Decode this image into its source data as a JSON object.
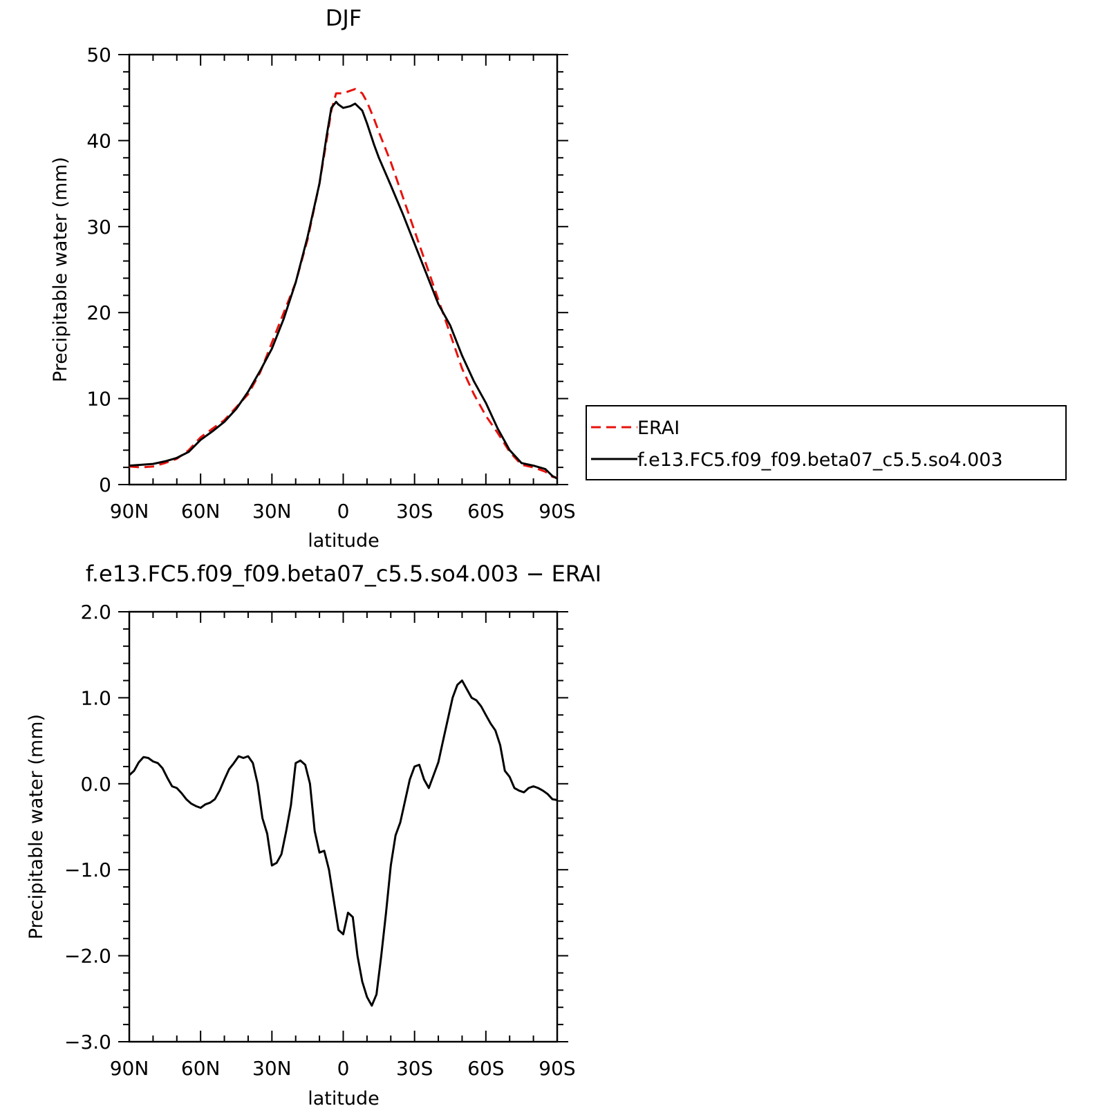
{
  "chart_data": [
    {
      "type": "line",
      "title": "DJF",
      "xlabel": "latitude",
      "ylabel": "Precipitable water (mm)",
      "xlim": [
        90,
        -90
      ],
      "ylim": [
        0,
        50
      ],
      "x_ticks": [
        {
          "value": 90,
          "label": "90N"
        },
        {
          "value": 60,
          "label": "60N"
        },
        {
          "value": 30,
          "label": "30N"
        },
        {
          "value": 0,
          "label": "0"
        },
        {
          "value": -30,
          "label": "30S"
        },
        {
          "value": -60,
          "label": "60S"
        },
        {
          "value": -90,
          "label": "90S"
        }
      ],
      "y_ticks": [
        {
          "value": 0,
          "label": "0"
        },
        {
          "value": 10,
          "label": "10"
        },
        {
          "value": 20,
          "label": "20"
        },
        {
          "value": 30,
          "label": "30"
        },
        {
          "value": 40,
          "label": "40"
        },
        {
          "value": 50,
          "label": "50"
        }
      ],
      "legend": "right",
      "series": [
        {
          "name": "ERAI",
          "color": "#e8120c",
          "dash": "dashed",
          "x": [
            90,
            85,
            80,
            75,
            70,
            65,
            60,
            55,
            50,
            45,
            40,
            35,
            30,
            25,
            20,
            15,
            10,
            7,
            5,
            3,
            2,
            0,
            -3,
            -5,
            -8,
            -10,
            -13,
            -15,
            -20,
            -25,
            -30,
            -35,
            -40,
            -45,
            -50,
            -55,
            -60,
            -65,
            -70,
            -75,
            -80,
            -85,
            -88,
            -90
          ],
          "y": [
            2.1,
            2.0,
            2.1,
            2.5,
            3.0,
            4.0,
            5.5,
            6.5,
            7.5,
            9.0,
            10.5,
            13.0,
            16.5,
            20.0,
            23.5,
            28.5,
            35.0,
            40.0,
            43.5,
            45.5,
            45.5,
            45.5,
            45.8,
            46.0,
            45.5,
            44.5,
            42.5,
            41.0,
            37.5,
            33.5,
            29.5,
            25.5,
            21.5,
            17.5,
            13.5,
            10.5,
            8.0,
            6.0,
            3.8,
            2.3,
            2.0,
            1.5,
            0.9,
            0.8
          ]
        },
        {
          "name": "f.e13.FC5.f09_f09.beta07_c5.5.so4.003",
          "color": "#000000",
          "dash": "solid",
          "x": [
            90,
            85,
            80,
            75,
            70,
            65,
            60,
            55,
            50,
            45,
            40,
            35,
            30,
            25,
            20,
            15,
            10,
            7,
            5,
            3,
            2,
            0,
            -3,
            -5,
            -8,
            -10,
            -13,
            -15,
            -20,
            -25,
            -30,
            -35,
            -40,
            -45,
            -50,
            -55,
            -60,
            -65,
            -70,
            -75,
            -80,
            -85,
            -88,
            -90
          ],
          "y": [
            2.2,
            2.3,
            2.4,
            2.7,
            3.1,
            3.8,
            5.2,
            6.2,
            7.3,
            8.8,
            10.8,
            13.2,
            15.8,
            19.3,
            23.5,
            28.8,
            35.0,
            40.5,
            43.8,
            44.5,
            44.2,
            43.8,
            44.0,
            44.3,
            43.5,
            42.0,
            39.5,
            38.0,
            34.8,
            31.5,
            28.0,
            24.5,
            21.0,
            18.5,
            15.0,
            12.0,
            9.5,
            6.5,
            4.0,
            2.5,
            2.2,
            1.8,
            1.0,
            0.7
          ]
        }
      ]
    },
    {
      "type": "line",
      "title": "f.e13.FC5.f09_f09.beta07_c5.5.so4.003 − ERAI",
      "xlabel": "latitude",
      "ylabel": "Precipitable water (mm)",
      "xlim": [
        90,
        -90
      ],
      "ylim": [
        -3.0,
        2.0
      ],
      "x_ticks": [
        {
          "value": 90,
          "label": "90N"
        },
        {
          "value": 60,
          "label": "60N"
        },
        {
          "value": 30,
          "label": "30N"
        },
        {
          "value": 0,
          "label": "0"
        },
        {
          "value": -30,
          "label": "30S"
        },
        {
          "value": -60,
          "label": "60S"
        },
        {
          "value": -90,
          "label": "90S"
        }
      ],
      "y_ticks": [
        {
          "value": 2.0,
          "label": "2.0"
        },
        {
          "value": 1.0,
          "label": "1.0"
        },
        {
          "value": 0.0,
          "label": "0.0"
        },
        {
          "value": -1.0,
          "label": "−1.0"
        },
        {
          "value": -2.0,
          "label": "−2.0"
        },
        {
          "value": -3.0,
          "label": "−3.0"
        }
      ],
      "series": [
        {
          "color": "#000000",
          "dash": "solid",
          "x": [
            90,
            88,
            86,
            84,
            82,
            80,
            78,
            76,
            74,
            72,
            70,
            68,
            66,
            64,
            62,
            60,
            58,
            56,
            54,
            52,
            50,
            48,
            46,
            44,
            42,
            40,
            38,
            36,
            34,
            32,
            30,
            28,
            26,
            24,
            22,
            20,
            18,
            16,
            14,
            12,
            10,
            8,
            6,
            4,
            2,
            0,
            -2,
            -4,
            -6,
            -8,
            -10,
            -12,
            -14,
            -16,
            -18,
            -20,
            -22,
            -24,
            -26,
            -28,
            -30,
            -32,
            -34,
            -36,
            -38,
            -40,
            -42,
            -44,
            -46,
            -48,
            -50,
            -52,
            -54,
            -56,
            -58,
            -60,
            -62,
            -64,
            -66,
            -68,
            -70,
            -72,
            -74,
            -76,
            -78,
            -80,
            -82,
            -84,
            -86,
            -88,
            -90
          ],
          "y": [
            0.1,
            0.15,
            0.25,
            0.31,
            0.3,
            0.26,
            0.24,
            0.18,
            0.07,
            -0.03,
            -0.05,
            -0.11,
            -0.18,
            -0.23,
            -0.26,
            -0.28,
            -0.24,
            -0.22,
            -0.18,
            -0.08,
            0.05,
            0.17,
            0.24,
            0.32,
            0.3,
            0.32,
            0.24,
            0.0,
            -0.4,
            -0.58,
            -0.95,
            -0.92,
            -0.82,
            -0.55,
            -0.25,
            0.24,
            0.27,
            0.22,
            0.0,
            -0.55,
            -0.8,
            -0.78,
            -1.0,
            -1.35,
            -1.7,
            -1.75,
            -1.5,
            -1.55,
            -2.0,
            -2.3,
            -2.48,
            -2.58,
            -2.45,
            -2.0,
            -1.5,
            -0.95,
            -0.6,
            -0.45,
            -0.2,
            0.05,
            0.2,
            0.22,
            0.05,
            -0.05,
            0.1,
            0.25,
            0.5,
            0.75,
            1.0,
            1.15,
            1.2,
            1.1,
            1.0,
            0.97,
            0.9,
            0.8,
            0.7,
            0.62,
            0.45,
            0.15,
            0.08,
            -0.05,
            -0.08,
            -0.1,
            -0.05,
            -0.03,
            -0.05,
            -0.08,
            -0.12,
            -0.18,
            -0.19
          ]
        }
      ]
    }
  ]
}
